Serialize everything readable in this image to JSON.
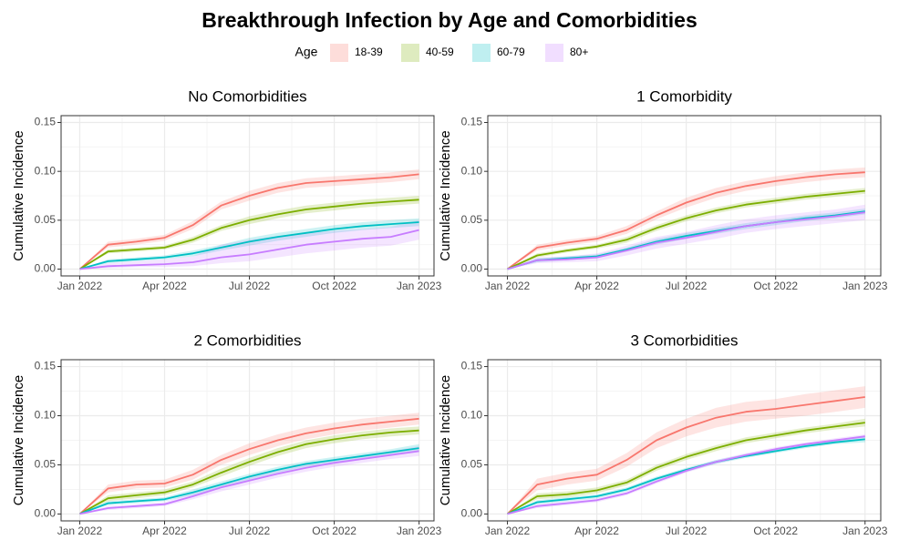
{
  "title": "Breakthrough Infection by Age and Comorbidities",
  "legend_title": "Age",
  "chart_data": [
    {
      "type": "line",
      "title": "No Comorbidities",
      "ylabel": "Cumulative Incidence",
      "x": [
        "2022-01",
        "2022-02",
        "2022-03",
        "2022-04",
        "2022-05",
        "2022-06",
        "2022-07",
        "2022-08",
        "2022-09",
        "2022-10",
        "2022-11",
        "2022-12",
        "2023-01"
      ],
      "xlim": [
        "2022-01",
        "2023-01"
      ],
      "xticks": [
        {
          "value": "2022-01",
          "label": "Jan 2022"
        },
        {
          "value": "2022-04",
          "label": "Apr 2022"
        },
        {
          "value": "2022-07",
          "label": "Jul 2022"
        },
        {
          "value": "2022-10",
          "label": "Oct 2022"
        },
        {
          "value": "2023-01",
          "label": "Jan 2023"
        }
      ],
      "ylim": [
        -0.007,
        0.157
      ],
      "yticks": [
        {
          "value": 0,
          "label": "0.00"
        },
        {
          "value": 0.05,
          "label": "0.05"
        },
        {
          "value": 0.1,
          "label": "0.10"
        },
        {
          "value": 0.15,
          "label": "0.15"
        }
      ],
      "grid": true,
      "series": [
        {
          "name": "18-39",
          "color": "#F8766D",
          "values": [
            0,
            0.025,
            0.028,
            0.032,
            0.045,
            0.065,
            0.075,
            0.083,
            0.088,
            0.09,
            0.092,
            0.094,
            0.097
          ],
          "lower": [
            0,
            0.022,
            0.025,
            0.029,
            0.041,
            0.061,
            0.07,
            0.078,
            0.083,
            0.085,
            0.087,
            0.089,
            0.092
          ],
          "upper": [
            0,
            0.028,
            0.031,
            0.035,
            0.049,
            0.069,
            0.08,
            0.088,
            0.093,
            0.095,
            0.097,
            0.099,
            0.102
          ]
        },
        {
          "name": "40-59",
          "color": "#7CAE00",
          "values": [
            0,
            0.018,
            0.02,
            0.022,
            0.03,
            0.042,
            0.05,
            0.056,
            0.061,
            0.064,
            0.067,
            0.069,
            0.071
          ],
          "lower": [
            0,
            0.016,
            0.018,
            0.02,
            0.027,
            0.039,
            0.046,
            0.052,
            0.057,
            0.06,
            0.063,
            0.065,
            0.067
          ],
          "upper": [
            0,
            0.02,
            0.022,
            0.024,
            0.033,
            0.045,
            0.054,
            0.06,
            0.065,
            0.068,
            0.071,
            0.073,
            0.075
          ]
        },
        {
          "name": "60-79",
          "color": "#00BFC4",
          "values": [
            0,
            0.008,
            0.01,
            0.012,
            0.016,
            0.022,
            0.028,
            0.033,
            0.037,
            0.041,
            0.044,
            0.046,
            0.048
          ],
          "lower": [
            0,
            0.006,
            0.008,
            0.01,
            0.013,
            0.019,
            0.024,
            0.029,
            0.033,
            0.037,
            0.04,
            0.042,
            0.044
          ],
          "upper": [
            0,
            0.01,
            0.012,
            0.014,
            0.019,
            0.025,
            0.032,
            0.037,
            0.041,
            0.045,
            0.048,
            0.05,
            0.052
          ]
        },
        {
          "name": "80+",
          "color": "#C77CFF",
          "values": [
            0,
            0.003,
            0.004,
            0.005,
            0.007,
            0.012,
            0.015,
            0.02,
            0.025,
            0.028,
            0.031,
            0.033,
            0.04
          ],
          "lower": [
            0,
            0.001,
            0.002,
            0.002,
            0.003,
            0.006,
            0.008,
            0.012,
            0.016,
            0.019,
            0.022,
            0.024,
            0.03
          ],
          "upper": [
            0,
            0.006,
            0.008,
            0.01,
            0.013,
            0.025,
            0.03,
            0.034,
            0.037,
            0.039,
            0.041,
            0.043,
            0.05
          ]
        }
      ]
    },
    {
      "type": "line",
      "title": "1 Comorbidity",
      "ylabel": "Cumulative Incidence",
      "x": [
        "2022-01",
        "2022-02",
        "2022-03",
        "2022-04",
        "2022-05",
        "2022-06",
        "2022-07",
        "2022-08",
        "2022-09",
        "2022-10",
        "2022-11",
        "2022-12",
        "2023-01"
      ],
      "xlim": [
        "2022-01",
        "2023-01"
      ],
      "xticks": [
        {
          "value": "2022-01",
          "label": "Jan 2022"
        },
        {
          "value": "2022-04",
          "label": "Apr 2022"
        },
        {
          "value": "2022-07",
          "label": "Jul 2022"
        },
        {
          "value": "2022-10",
          "label": "Oct 2022"
        },
        {
          "value": "2023-01",
          "label": "Jan 2023"
        }
      ],
      "ylim": [
        -0.007,
        0.157
      ],
      "yticks": [
        {
          "value": 0,
          "label": "0.00"
        },
        {
          "value": 0.05,
          "label": "0.05"
        },
        {
          "value": 0.1,
          "label": "0.10"
        },
        {
          "value": 0.15,
          "label": "0.15"
        }
      ],
      "grid": true,
      "series": [
        {
          "name": "18-39",
          "color": "#F8766D",
          "values": [
            0,
            0.022,
            0.027,
            0.031,
            0.04,
            0.055,
            0.068,
            0.078,
            0.085,
            0.09,
            0.094,
            0.097,
            0.099
          ],
          "lower": [
            0,
            0.019,
            0.024,
            0.028,
            0.036,
            0.051,
            0.063,
            0.073,
            0.08,
            0.085,
            0.089,
            0.092,
            0.094
          ],
          "upper": [
            0,
            0.025,
            0.03,
            0.034,
            0.044,
            0.059,
            0.073,
            0.083,
            0.09,
            0.095,
            0.099,
            0.102,
            0.104
          ]
        },
        {
          "name": "40-59",
          "color": "#7CAE00",
          "values": [
            0,
            0.014,
            0.019,
            0.023,
            0.03,
            0.042,
            0.052,
            0.06,
            0.066,
            0.07,
            0.074,
            0.077,
            0.08
          ],
          "lower": [
            0,
            0.012,
            0.017,
            0.021,
            0.027,
            0.039,
            0.049,
            0.057,
            0.063,
            0.067,
            0.071,
            0.074,
            0.077
          ],
          "upper": [
            0,
            0.016,
            0.021,
            0.025,
            0.033,
            0.045,
            0.055,
            0.063,
            0.069,
            0.073,
            0.077,
            0.08,
            0.083
          ]
        },
        {
          "name": "60-79",
          "color": "#00BFC4",
          "values": [
            0,
            0.009,
            0.011,
            0.013,
            0.02,
            0.028,
            0.034,
            0.039,
            0.044,
            0.048,
            0.052,
            0.055,
            0.059
          ],
          "lower": [
            0,
            0.007,
            0.009,
            0.011,
            0.018,
            0.025,
            0.031,
            0.036,
            0.041,
            0.045,
            0.049,
            0.052,
            0.056
          ],
          "upper": [
            0,
            0.011,
            0.013,
            0.015,
            0.022,
            0.031,
            0.037,
            0.042,
            0.047,
            0.051,
            0.055,
            0.058,
            0.062
          ]
        },
        {
          "name": "80+",
          "color": "#C77CFF",
          "values": [
            0,
            0.009,
            0.01,
            0.012,
            0.019,
            0.027,
            0.032,
            0.038,
            0.044,
            0.048,
            0.051,
            0.054,
            0.058
          ],
          "lower": [
            0,
            0.006,
            0.007,
            0.008,
            0.014,
            0.021,
            0.026,
            0.031,
            0.037,
            0.041,
            0.044,
            0.047,
            0.05
          ],
          "upper": [
            0,
            0.012,
            0.013,
            0.016,
            0.024,
            0.033,
            0.038,
            0.045,
            0.051,
            0.055,
            0.058,
            0.061,
            0.066
          ]
        }
      ]
    },
    {
      "type": "line",
      "title": "2 Comorbidities",
      "ylabel": "Cumulative Incidence",
      "x": [
        "2022-01",
        "2022-02",
        "2022-03",
        "2022-04",
        "2022-05",
        "2022-06",
        "2022-07",
        "2022-08",
        "2022-09",
        "2022-10",
        "2022-11",
        "2022-12",
        "2023-01"
      ],
      "xlim": [
        "2022-01",
        "2023-01"
      ],
      "xticks": [
        {
          "value": "2022-01",
          "label": "Jan 2022"
        },
        {
          "value": "2022-04",
          "label": "Apr 2022"
        },
        {
          "value": "2022-07",
          "label": "Jul 2022"
        },
        {
          "value": "2022-10",
          "label": "Oct 2022"
        },
        {
          "value": "2023-01",
          "label": "Jan 2023"
        }
      ],
      "ylim": [
        -0.007,
        0.157
      ],
      "yticks": [
        {
          "value": 0,
          "label": "0.00"
        },
        {
          "value": 0.05,
          "label": "0.05"
        },
        {
          "value": 0.1,
          "label": "0.10"
        },
        {
          "value": 0.15,
          "label": "0.15"
        }
      ],
      "grid": true,
      "series": [
        {
          "name": "18-39",
          "color": "#F8766D",
          "values": [
            0,
            0.026,
            0.03,
            0.031,
            0.04,
            0.055,
            0.066,
            0.075,
            0.082,
            0.087,
            0.091,
            0.094,
            0.097
          ],
          "lower": [
            0,
            0.022,
            0.026,
            0.027,
            0.035,
            0.05,
            0.06,
            0.069,
            0.076,
            0.081,
            0.085,
            0.088,
            0.091
          ],
          "upper": [
            0,
            0.03,
            0.034,
            0.035,
            0.045,
            0.06,
            0.072,
            0.081,
            0.088,
            0.093,
            0.097,
            0.1,
            0.103
          ]
        },
        {
          "name": "40-59",
          "color": "#7CAE00",
          "values": [
            0,
            0.016,
            0.019,
            0.022,
            0.03,
            0.042,
            0.053,
            0.063,
            0.071,
            0.076,
            0.08,
            0.083,
            0.085
          ],
          "lower": [
            0,
            0.013,
            0.016,
            0.019,
            0.027,
            0.038,
            0.049,
            0.059,
            0.067,
            0.072,
            0.076,
            0.079,
            0.081
          ],
          "upper": [
            0,
            0.019,
            0.022,
            0.025,
            0.033,
            0.046,
            0.057,
            0.067,
            0.075,
            0.08,
            0.084,
            0.087,
            0.089
          ]
        },
        {
          "name": "60-79",
          "color": "#00BFC4",
          "values": [
            0,
            0.011,
            0.013,
            0.015,
            0.022,
            0.03,
            0.038,
            0.045,
            0.051,
            0.055,
            0.059,
            0.063,
            0.067
          ],
          "lower": [
            0,
            0.009,
            0.011,
            0.013,
            0.019,
            0.027,
            0.035,
            0.042,
            0.048,
            0.052,
            0.056,
            0.06,
            0.063
          ],
          "upper": [
            0,
            0.013,
            0.015,
            0.017,
            0.025,
            0.033,
            0.041,
            0.048,
            0.054,
            0.058,
            0.062,
            0.066,
            0.071
          ]
        },
        {
          "name": "80+",
          "color": "#C77CFF",
          "values": [
            0,
            0.006,
            0.008,
            0.01,
            0.018,
            0.027,
            0.034,
            0.041,
            0.047,
            0.052,
            0.056,
            0.06,
            0.064
          ],
          "lower": [
            0,
            0.004,
            0.006,
            0.008,
            0.015,
            0.023,
            0.03,
            0.037,
            0.043,
            0.048,
            0.052,
            0.056,
            0.059
          ],
          "upper": [
            0,
            0.008,
            0.01,
            0.012,
            0.021,
            0.031,
            0.038,
            0.045,
            0.051,
            0.056,
            0.06,
            0.064,
            0.069
          ]
        }
      ]
    },
    {
      "type": "line",
      "title": "3 Comorbidities",
      "ylabel": "Cumulative Incidence",
      "x": [
        "2022-01",
        "2022-02",
        "2022-03",
        "2022-04",
        "2022-05",
        "2022-06",
        "2022-07",
        "2022-08",
        "2022-09",
        "2022-10",
        "2022-11",
        "2022-12",
        "2023-01"
      ],
      "xlim": [
        "2022-01",
        "2023-01"
      ],
      "xticks": [
        {
          "value": "2022-01",
          "label": "Jan 2022"
        },
        {
          "value": "2022-04",
          "label": "Apr 2022"
        },
        {
          "value": "2022-07",
          "label": "Jul 2022"
        },
        {
          "value": "2022-10",
          "label": "Oct 2022"
        },
        {
          "value": "2023-01",
          "label": "Jan 2023"
        }
      ],
      "ylim": [
        -0.007,
        0.157
      ],
      "yticks": [
        {
          "value": 0,
          "label": "0.00"
        },
        {
          "value": 0.05,
          "label": "0.05"
        },
        {
          "value": 0.1,
          "label": "0.10"
        },
        {
          "value": 0.15,
          "label": "0.15"
        }
      ],
      "grid": true,
      "series": [
        {
          "name": "18-39",
          "color": "#F8766D",
          "values": [
            0,
            0.03,
            0.036,
            0.04,
            0.055,
            0.075,
            0.088,
            0.098,
            0.104,
            0.107,
            0.111,
            0.115,
            0.119
          ],
          "lower": [
            0,
            0.024,
            0.03,
            0.034,
            0.048,
            0.067,
            0.079,
            0.088,
            0.094,
            0.097,
            0.1,
            0.104,
            0.108
          ],
          "upper": [
            0,
            0.036,
            0.042,
            0.046,
            0.062,
            0.083,
            0.097,
            0.108,
            0.114,
            0.117,
            0.122,
            0.126,
            0.13
          ]
        },
        {
          "name": "40-59",
          "color": "#7CAE00",
          "values": [
            0,
            0.018,
            0.02,
            0.024,
            0.032,
            0.047,
            0.058,
            0.067,
            0.075,
            0.08,
            0.085,
            0.089,
            0.093
          ],
          "lower": [
            0,
            0.015,
            0.017,
            0.021,
            0.029,
            0.044,
            0.055,
            0.064,
            0.072,
            0.077,
            0.082,
            0.086,
            0.089
          ],
          "upper": [
            0,
            0.021,
            0.023,
            0.027,
            0.035,
            0.05,
            0.061,
            0.07,
            0.078,
            0.083,
            0.088,
            0.092,
            0.097
          ]
        },
        {
          "name": "60-79",
          "color": "#00BFC4",
          "values": [
            0,
            0.012,
            0.015,
            0.018,
            0.025,
            0.036,
            0.045,
            0.053,
            0.059,
            0.064,
            0.069,
            0.073,
            0.076
          ],
          "lower": [
            0,
            0.01,
            0.013,
            0.016,
            0.023,
            0.034,
            0.043,
            0.051,
            0.057,
            0.062,
            0.067,
            0.071,
            0.073
          ],
          "upper": [
            0,
            0.014,
            0.017,
            0.02,
            0.027,
            0.038,
            0.047,
            0.055,
            0.061,
            0.066,
            0.071,
            0.075,
            0.079
          ]
        },
        {
          "name": "80+",
          "color": "#C77CFF",
          "values": [
            0,
            0.008,
            0.011,
            0.014,
            0.021,
            0.033,
            0.044,
            0.053,
            0.06,
            0.066,
            0.071,
            0.075,
            0.079
          ],
          "lower": [
            0,
            0.006,
            0.009,
            0.012,
            0.019,
            0.031,
            0.042,
            0.051,
            0.058,
            0.064,
            0.069,
            0.073,
            0.077
          ],
          "upper": [
            0,
            0.01,
            0.013,
            0.016,
            0.023,
            0.035,
            0.046,
            0.055,
            0.062,
            0.068,
            0.073,
            0.077,
            0.081
          ]
        }
      ]
    }
  ]
}
